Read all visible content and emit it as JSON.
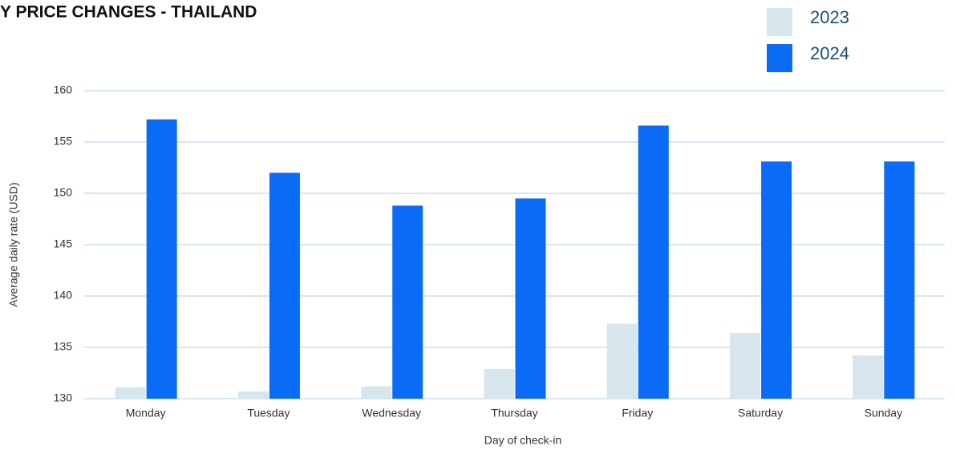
{
  "chart_data": {
    "type": "bar",
    "title": "Y PRICE CHANGES - THAILAND",
    "xlabel": "Day of check-in",
    "ylabel": "Average daily rate (USD)",
    "categories": [
      "Monday",
      "Tuesday",
      "Wednesday",
      "Thursday",
      "Friday",
      "Saturday",
      "Sunday"
    ],
    "series": [
      {
        "name": "2023",
        "color": "#d7e5ec",
        "values": [
          131.1,
          130.7,
          131.2,
          132.9,
          137.3,
          136.4,
          134.2
        ]
      },
      {
        "name": "2024",
        "color": "#0a6cf6",
        "values": [
          157.2,
          152.0,
          148.8,
          149.5,
          156.6,
          153.1,
          153.1
        ]
      }
    ],
    "ylim": [
      130,
      160
    ],
    "yticks": [
      130,
      135,
      140,
      145,
      150,
      155,
      160
    ],
    "grid": true,
    "legend": "top-right"
  }
}
